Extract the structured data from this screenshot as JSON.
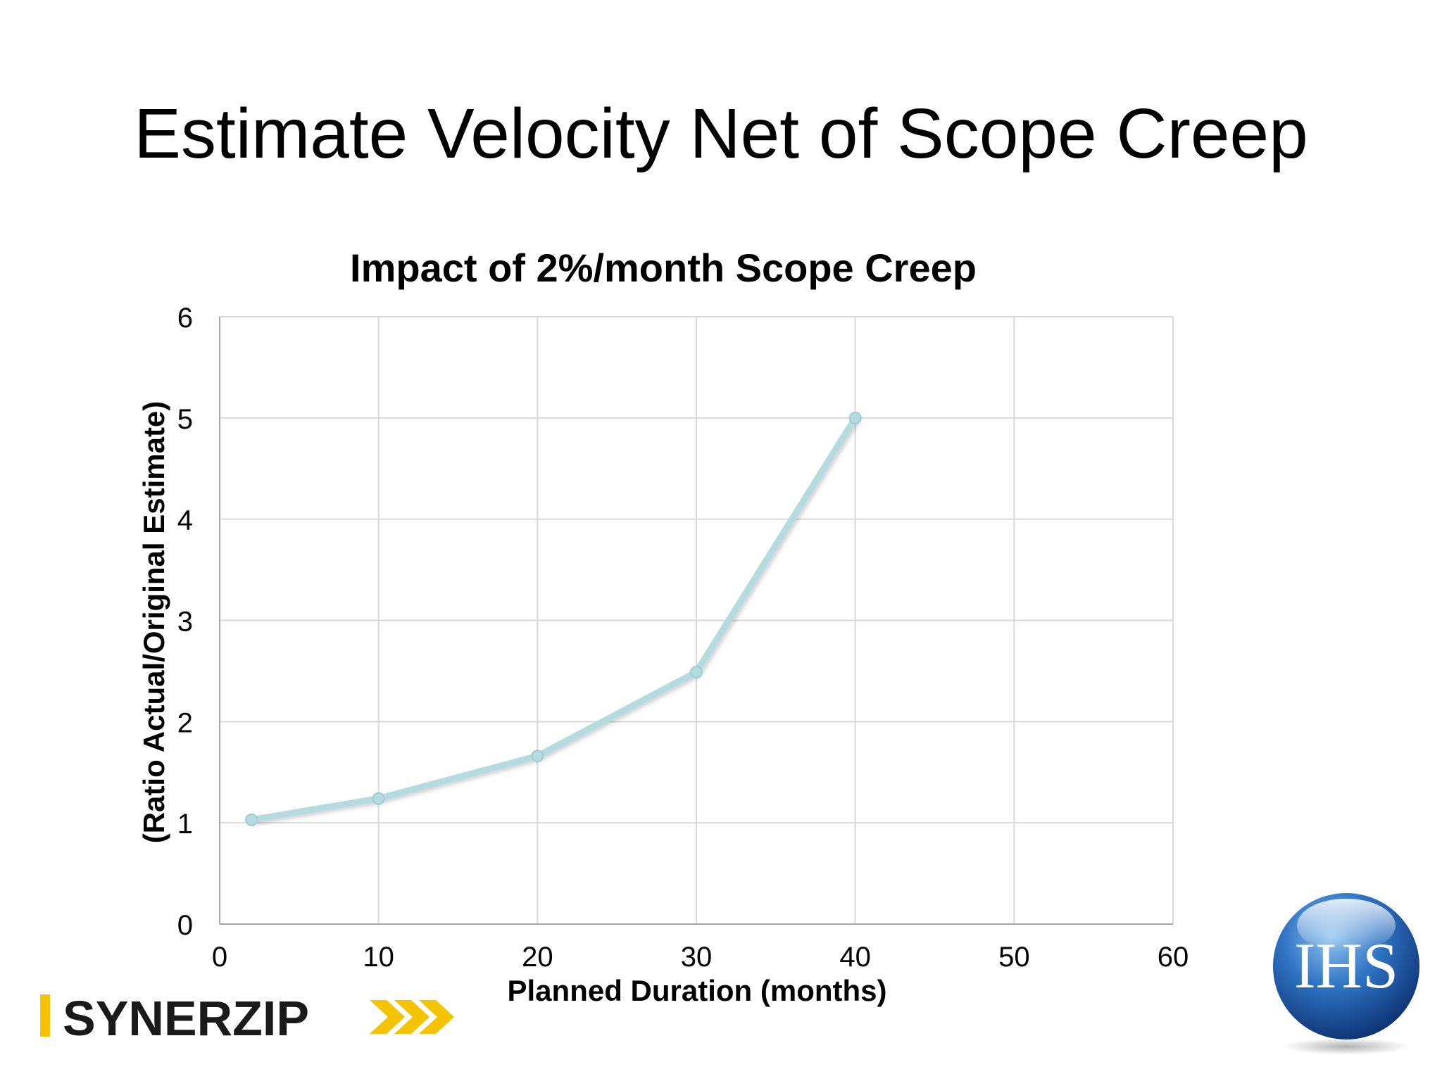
{
  "slide": {
    "title": "Estimate Velocity Net of Scope Creep"
  },
  "chart_data": {
    "type": "line",
    "title": "Impact of 2%/month Scope Creep",
    "xlabel": "Planned Duration (months)",
    "ylabel": "(Ratio Actual/Original Estimate)",
    "xlim": [
      0,
      60
    ],
    "ylim": [
      0,
      6
    ],
    "xticks": [
      0,
      10,
      20,
      30,
      40,
      50,
      60
    ],
    "yticks": [
      0,
      1,
      2,
      3,
      4,
      5,
      6
    ],
    "grid": true,
    "legend": "none",
    "series": [
      {
        "x": [
          2,
          10,
          20,
          30,
          40
        ],
        "y": [
          1.03,
          1.24,
          1.66,
          2.49,
          5.0
        ]
      }
    ],
    "colors": {
      "line": "#b4dbe0",
      "grid": "#d9d9d9",
      "axis": "#a6a6a6"
    }
  },
  "logos": {
    "synerzip": {
      "text": "SYNERZIP",
      "colors": {
        "accent": "#f5c400",
        "text": "#1a1a1a"
      }
    },
    "ihs": {
      "text": "IHS",
      "colors": {
        "sphere": "#1b5aa8",
        "text": "#ffffff"
      }
    }
  }
}
